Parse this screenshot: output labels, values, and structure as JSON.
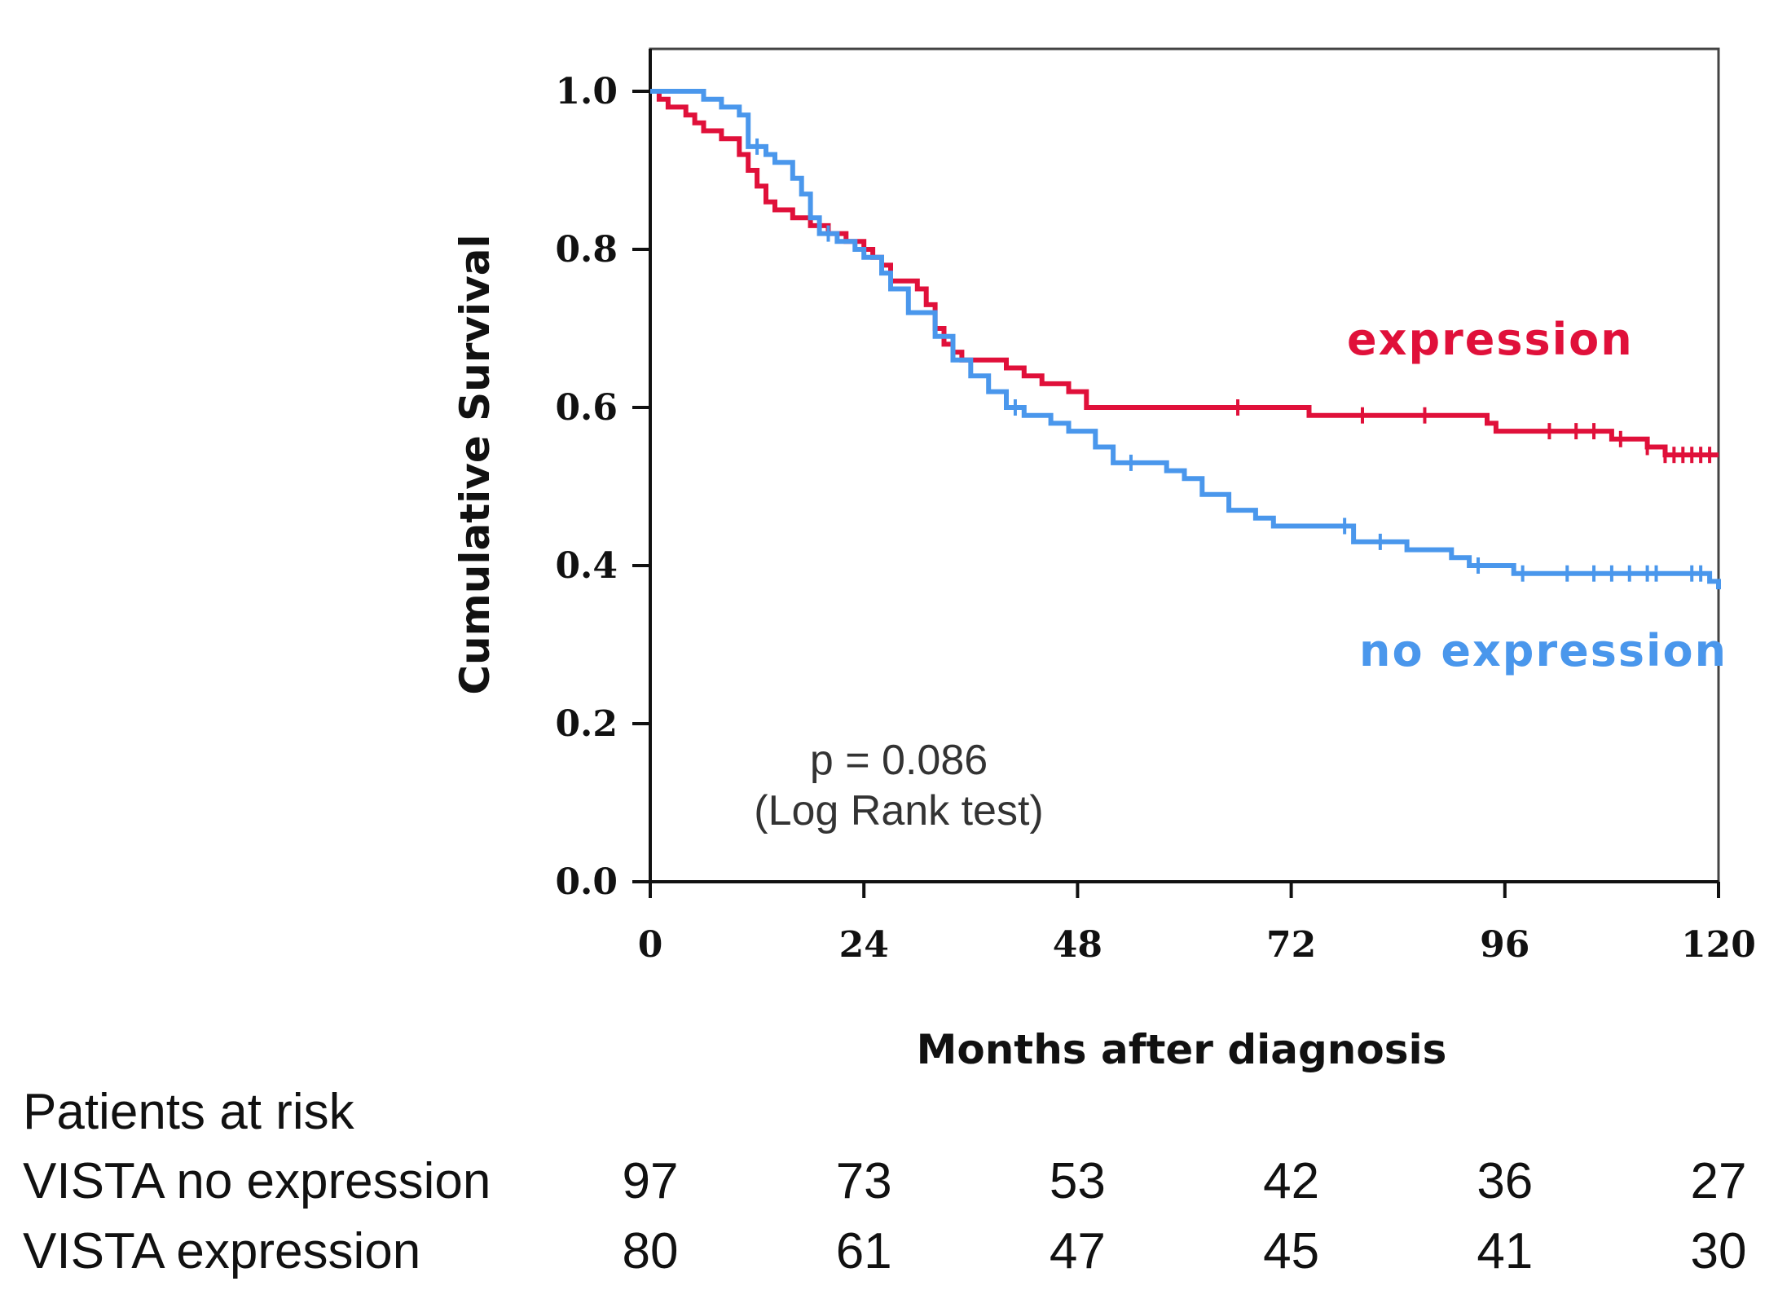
{
  "chart_data": {
    "type": "line",
    "subtype": "kaplan-meier",
    "xlabel": "Months after diagnosis",
    "ylabel": "Cumulative Survival",
    "xlim": [
      0,
      120
    ],
    "ylim": [
      0,
      1.05
    ],
    "xticks": [
      0,
      24,
      48,
      72,
      96,
      120
    ],
    "yticks": [
      0.0,
      0.2,
      0.4,
      0.6,
      0.8,
      1.0
    ],
    "ytick_labels": [
      "0.0",
      "0.2",
      "0.4",
      "0.6",
      "0.8",
      "1.0"
    ],
    "annotation": [
      "p = 0.086",
      "(Log Rank test)"
    ],
    "grid": false,
    "series": [
      {
        "name": "expression",
        "label": "expression",
        "color": "#e0103a",
        "points": [
          [
            0,
            1.0
          ],
          [
            1,
            0.99
          ],
          [
            2,
            0.98
          ],
          [
            4,
            0.97
          ],
          [
            5,
            0.96
          ],
          [
            6,
            0.95
          ],
          [
            8,
            0.94
          ],
          [
            10,
            0.92
          ],
          [
            11,
            0.9
          ],
          [
            12,
            0.88
          ],
          [
            13,
            0.86
          ],
          [
            14,
            0.85
          ],
          [
            16,
            0.84
          ],
          [
            18,
            0.83
          ],
          [
            20,
            0.82
          ],
          [
            22,
            0.81
          ],
          [
            24,
            0.8
          ],
          [
            25,
            0.79
          ],
          [
            26,
            0.78
          ],
          [
            27,
            0.76
          ],
          [
            30,
            0.75
          ],
          [
            31,
            0.73
          ],
          [
            32,
            0.7
          ],
          [
            33,
            0.68
          ],
          [
            34,
            0.67
          ],
          [
            35,
            0.66
          ],
          [
            40,
            0.65
          ],
          [
            42,
            0.64
          ],
          [
            44,
            0.63
          ],
          [
            47,
            0.62
          ],
          [
            49,
            0.6
          ],
          [
            74,
            0.59
          ],
          [
            94,
            0.58
          ],
          [
            95,
            0.57
          ],
          [
            108,
            0.56
          ],
          [
            112,
            0.55
          ],
          [
            114,
            0.54
          ],
          [
            120,
            0.54
          ]
        ],
        "censor_months": [
          66,
          80,
          87,
          101,
          104,
          106,
          109,
          112,
          114,
          115,
          116,
          117,
          118,
          119
        ]
      },
      {
        "name": "no expression",
        "label": "no expression",
        "color": "#4a97ec",
        "points": [
          [
            0,
            1.0
          ],
          [
            6,
            0.99
          ],
          [
            8,
            0.98
          ],
          [
            10,
            0.97
          ],
          [
            11,
            0.93
          ],
          [
            13,
            0.92
          ],
          [
            14,
            0.91
          ],
          [
            16,
            0.89
          ],
          [
            17,
            0.87
          ],
          [
            18,
            0.84
          ],
          [
            19,
            0.82
          ],
          [
            21,
            0.81
          ],
          [
            23,
            0.8
          ],
          [
            24,
            0.79
          ],
          [
            26,
            0.77
          ],
          [
            27,
            0.75
          ],
          [
            29,
            0.72
          ],
          [
            32,
            0.69
          ],
          [
            34,
            0.66
          ],
          [
            36,
            0.64
          ],
          [
            38,
            0.62
          ],
          [
            40,
            0.6
          ],
          [
            42,
            0.59
          ],
          [
            45,
            0.58
          ],
          [
            47,
            0.57
          ],
          [
            50,
            0.55
          ],
          [
            52,
            0.53
          ],
          [
            58,
            0.52
          ],
          [
            60,
            0.51
          ],
          [
            62,
            0.49
          ],
          [
            65,
            0.47
          ],
          [
            68,
            0.46
          ],
          [
            70,
            0.45
          ],
          [
            79,
            0.43
          ],
          [
            85,
            0.42
          ],
          [
            90,
            0.41
          ],
          [
            92,
            0.4
          ],
          [
            97,
            0.39
          ],
          [
            119,
            0.38
          ],
          [
            120,
            0.37
          ]
        ],
        "censor_months": [
          12,
          20,
          41,
          54,
          78,
          82,
          93,
          98,
          103,
          106,
          108,
          110,
          112,
          113,
          117,
          118
        ]
      }
    ]
  },
  "risk_table": {
    "title": "Patients at risk",
    "rows": [
      {
        "label": "VISTA no expression",
        "values": [
          "97",
          "73",
          "53",
          "42",
          "36",
          "27"
        ]
      },
      {
        "label": "VISTA expression",
        "values": [
          "80",
          "61",
          "47",
          "45",
          "41",
          "30"
        ]
      }
    ]
  }
}
